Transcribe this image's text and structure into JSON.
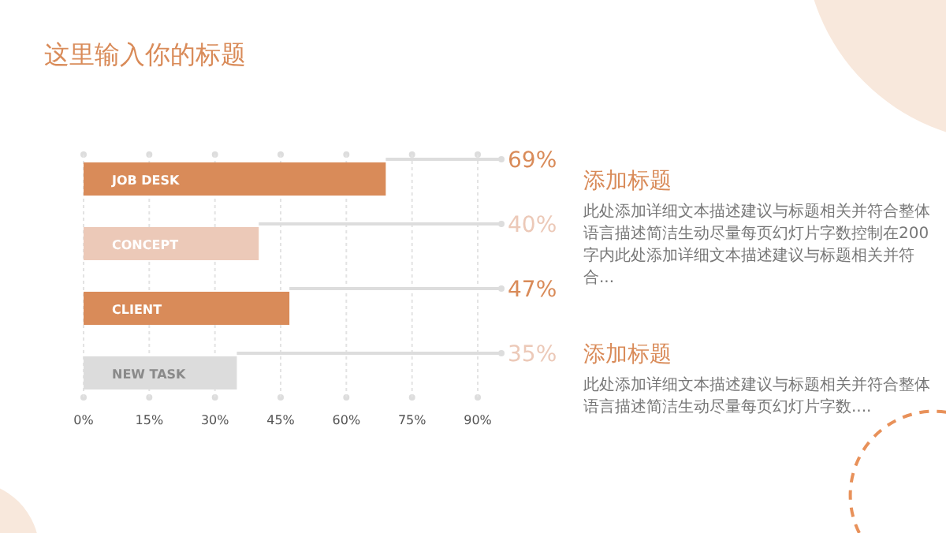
{
  "chart_data": {
    "type": "bar",
    "orientation": "horizontal",
    "title": "这里输入你的标题",
    "categories": [
      "JOB DESK",
      "CONCEPT",
      "CLIENT",
      "NEW TASK"
    ],
    "values": [
      69,
      40,
      47,
      35
    ],
    "value_labels": [
      "69%",
      "40%",
      "47%",
      "35%"
    ],
    "colors": [
      "#d98b59",
      "#ecc9b8",
      "#d98b59",
      "#dcdcdc"
    ],
    "xlim": [
      0,
      90
    ],
    "xticks": [
      {
        "value": 0,
        "label": "0%"
      },
      {
        "value": 15,
        "label": "15%"
      },
      {
        "value": 30,
        "label": "30%"
      },
      {
        "value": 45,
        "label": "45%"
      },
      {
        "value": 60,
        "label": "60%"
      },
      {
        "value": 75,
        "label": "75%"
      },
      {
        "value": 90,
        "label": "90%"
      }
    ],
    "grid": "x",
    "annotations": [
      "添加标题",
      "此处添加详细文本描述建议与标题相关并符合整体语言描述简洁生动尽量每页幻灯片字数控制在200字内此处添加详细文本描述建议与标题相关并符合...",
      "添加标题",
      "此处添加详细文本描述建议与标题相关并符合整体语言描述简洁生动尽量每页幻灯片字数...."
    ]
  }
}
